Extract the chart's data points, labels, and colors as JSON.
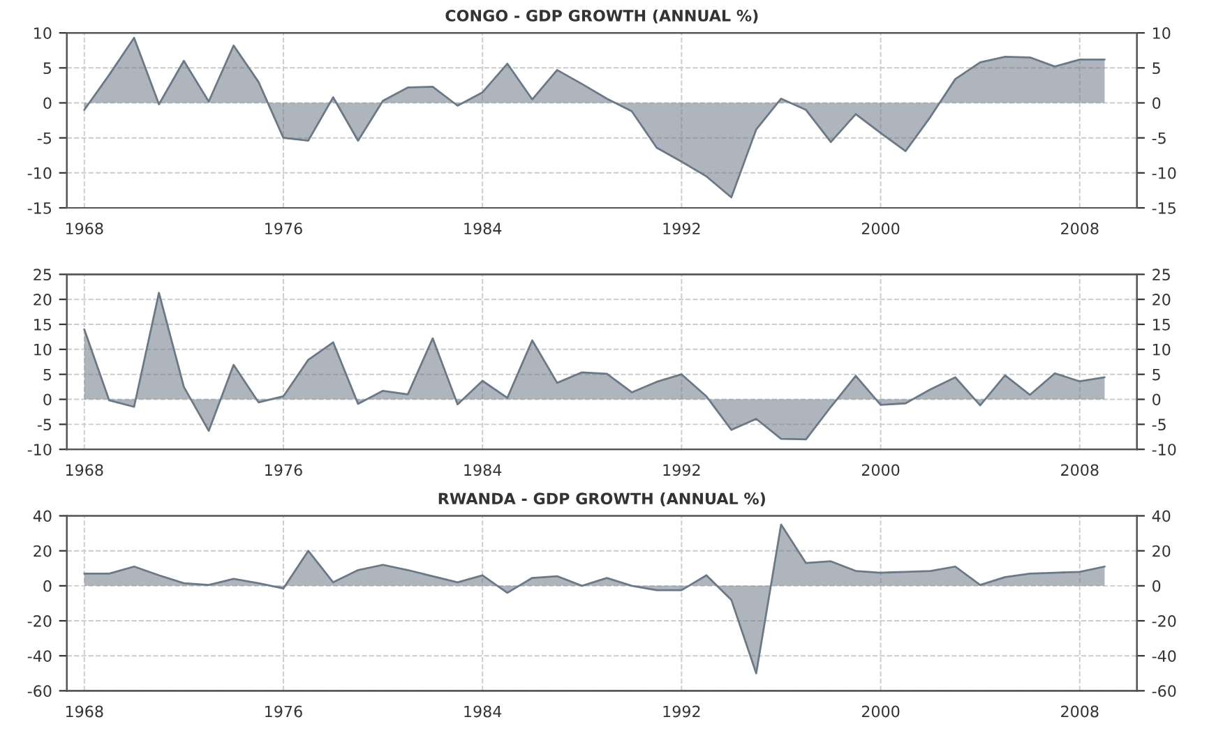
{
  "chart_data": [
    {
      "type": "area",
      "title": "CONGO - GDP GROWTH (ANNUAL %)",
      "x": [
        1968,
        1969,
        1970,
        1971,
        1972,
        1973,
        1974,
        1975,
        1976,
        1977,
        1978,
        1979,
        1980,
        1981,
        1982,
        1983,
        1984,
        1985,
        1986,
        1987,
        1988,
        1989,
        1990,
        1991,
        1992,
        1993,
        1994,
        1995,
        1996,
        1997,
        1998,
        1999,
        2000,
        2001,
        2002,
        2003,
        2004,
        2005,
        2006,
        2007,
        2008,
        2009
      ],
      "series": [
        {
          "color": "#6b7886",
          "values": [
            -1,
            4,
            9.3,
            -0.2,
            6,
            0.2,
            8.2,
            3,
            -5,
            -5.4,
            0.8,
            -5.4,
            0.3,
            2.2,
            2.3,
            -0.4,
            1.5,
            5.6,
            0.5,
            4.7,
            2.7,
            0.6,
            -1.2,
            -6.4,
            -8.4,
            -10.5,
            -13.5,
            -3.8,
            0.6,
            -1,
            -5.6,
            -1.6,
            -4.3,
            -6.9,
            -2,
            3.4,
            5.8,
            6.6,
            6.5,
            5.2,
            6.2,
            6.2
          ]
        }
      ],
      "xlim": [
        1967.3,
        2010.3
      ],
      "xticks": [
        1968,
        1976,
        1984,
        1992,
        2000,
        2008
      ],
      "ylim": [
        -15,
        10
      ],
      "yticks": [
        -15,
        -10,
        -5,
        0,
        5,
        10
      ],
      "y2lim": [
        -15,
        10
      ],
      "y2ticks": [
        -15,
        -10,
        -5,
        0,
        5,
        10
      ],
      "grid": true
    },
    {
      "type": "area",
      "x": [
        1968,
        1969,
        1970,
        1971,
        1972,
        1973,
        1974,
        1975,
        1976,
        1977,
        1978,
        1979,
        1980,
        1981,
        1982,
        1983,
        1984,
        1985,
        1986,
        1987,
        1988,
        1989,
        1990,
        1991,
        1992,
        1993,
        1994,
        1995,
        1996,
        1997,
        1998,
        1999,
        2000,
        2001,
        2002,
        2003,
        2004,
        2005,
        2006,
        2007,
        2008,
        2009
      ],
      "series": [
        {
          "color": "#6b7886",
          "values": [
            14,
            -0.2,
            -1.5,
            21.3,
            2.5,
            -6.3,
            6.9,
            -0.6,
            0.6,
            7.9,
            11.4,
            -0.9,
            1.7,
            1,
            12.2,
            -1,
            3.7,
            0.3,
            11.8,
            3.3,
            5.4,
            5.1,
            1.4,
            3.5,
            5,
            0.6,
            -6.1,
            -3.9,
            -7.9,
            -8,
            -1.5,
            4.7,
            -1.1,
            -0.8,
            2,
            4.4,
            -1.2,
            4.8,
            0.9,
            5.2,
            3.6,
            4.4
          ]
        }
      ],
      "xlim": [
        1967.3,
        2010.3
      ],
      "xticks": [
        1968,
        1976,
        1984,
        1992,
        2000,
        2008
      ],
      "ylim": [
        -10,
        25
      ],
      "yticks": [
        -10,
        -5,
        0,
        5,
        10,
        15,
        20,
        25
      ],
      "y2lim": [
        -10,
        25
      ],
      "y2ticks": [
        -10,
        -5,
        0,
        5,
        10,
        15,
        20,
        25
      ],
      "grid": true
    },
    {
      "type": "area",
      "title": "RWANDA - GDP GROWTH (ANNUAL %)",
      "x": [
        1968,
        1969,
        1970,
        1971,
        1972,
        1973,
        1974,
        1975,
        1976,
        1977,
        1978,
        1979,
        1980,
        1981,
        1982,
        1983,
        1984,
        1985,
        1986,
        1987,
        1988,
        1989,
        1990,
        1991,
        1992,
        1993,
        1994,
        1995,
        1996,
        1997,
        1998,
        1999,
        2000,
        2001,
        2002,
        2003,
        2004,
        2005,
        2006,
        2007,
        2008,
        2009
      ],
      "series": [
        {
          "color": "#6b7886",
          "values": [
            7,
            7,
            11,
            6,
            1.5,
            0.5,
            4,
            1.5,
            -1.5,
            20,
            2,
            9,
            12,
            9,
            5.5,
            2,
            6,
            -4,
            4.5,
            5.5,
            0,
            4.5,
            0,
            -2.5,
            -2.5,
            6,
            -8,
            -50,
            35,
            13,
            14,
            8.5,
            7.5,
            8,
            8.5,
            11,
            0.5,
            5,
            7,
            7.5,
            8,
            11
          ]
        }
      ],
      "xlim": [
        1967.3,
        2010.3
      ],
      "xticks": [
        1968,
        1976,
        1984,
        1992,
        2000,
        2008
      ],
      "ylim": [
        -60,
        40
      ],
      "yticks": [
        -60,
        -40,
        -20,
        0,
        20,
        40
      ],
      "y2lim": [
        -60,
        40
      ],
      "y2ticks": [
        -60,
        -40,
        -20,
        0,
        20,
        40
      ],
      "grid": true
    }
  ]
}
